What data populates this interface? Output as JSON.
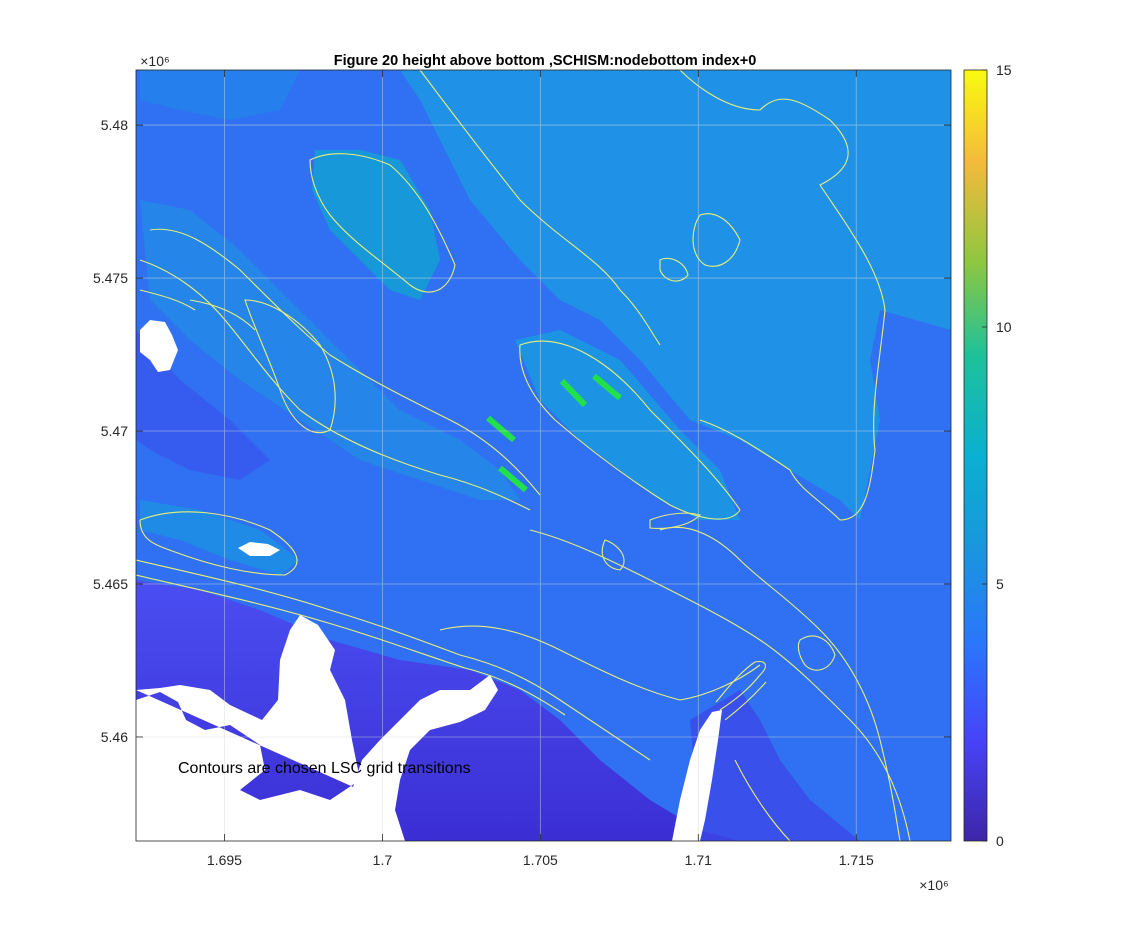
{
  "chart_data": {
    "type": "heatmap",
    "title": "Figure 20 height above bottom ,SCHISM:nodebottom index+0",
    "annotation": "Contours are chosen LSC grid  transitions",
    "x_axis": {
      "range": [
        1.6922,
        1.718
      ],
      "ticks": [
        1.695,
        1.7,
        1.705,
        1.71,
        1.715
      ],
      "tick_labels": [
        "1.695",
        "1.7",
        "1.705",
        "1.71",
        "1.715"
      ],
      "exponent_label": "×10⁶",
      "label": ""
    },
    "y_axis": {
      "range": [
        5.4566,
        5.4818
      ],
      "ticks": [
        5.46,
        5.465,
        5.47,
        5.475,
        5.48
      ],
      "tick_labels": [
        "5.46",
        "5.465",
        "5.47",
        "5.475",
        "5.48"
      ],
      "exponent_label": "×10⁶",
      "label": ""
    },
    "colorbar": {
      "range": [
        0,
        15
      ],
      "ticks": [
        0,
        5,
        10,
        15
      ],
      "tick_labels": [
        "0",
        "5",
        "10",
        "15"
      ],
      "colormap": "parula"
    },
    "field_value_range": [
      0.5,
      7.5
    ],
    "green_markers_value": 9,
    "contour_color": "#e8ef7a",
    "grid": true,
    "land_color": "#ffffff"
  }
}
